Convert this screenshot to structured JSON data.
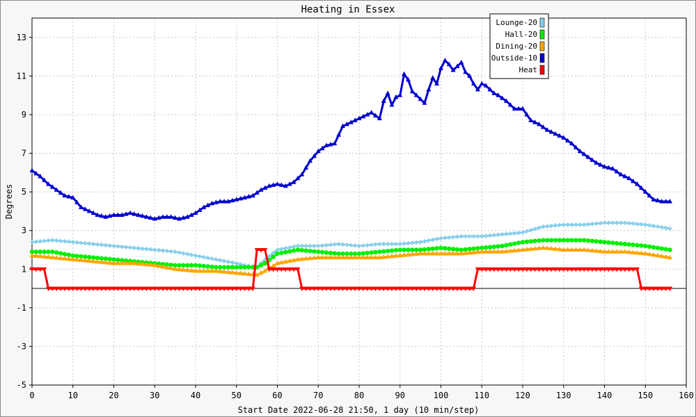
{
  "chart_data": {
    "type": "line",
    "title": "Heating in Essex",
    "xlabel": "Start Date 2022-06-28 21:50, 1 day (10 min/step)",
    "ylabel": "Degrees",
    "xlim": [
      0,
      160
    ],
    "ylim": [
      -5,
      14
    ],
    "x_ticks": [
      "0",
      "10",
      "20",
      "30",
      "40",
      "50",
      "60",
      "70",
      "80",
      "90",
      "100",
      "110",
      "120",
      "130",
      "140",
      "150",
      "160"
    ],
    "y_ticks": [
      "-5",
      "-3",
      "-1",
      "1",
      "3",
      "5",
      "7",
      "9",
      "11",
      "13"
    ],
    "grid": true,
    "legend_position": "top-right",
    "series": [
      {
        "name": "Lounge-20",
        "color": "#87ceeb",
        "marker": "plus",
        "points": [
          [
            0,
            2.4
          ],
          [
            5,
            2.5
          ],
          [
            10,
            2.4
          ],
          [
            15,
            2.3
          ],
          [
            20,
            2.2
          ],
          [
            25,
            2.1
          ],
          [
            30,
            2.0
          ],
          [
            35,
            1.9
          ],
          [
            40,
            1.7
          ],
          [
            45,
            1.5
          ],
          [
            50,
            1.3
          ],
          [
            52,
            1.2
          ],
          [
            55,
            1.1
          ],
          [
            57,
            1.5
          ],
          [
            60,
            2.0
          ],
          [
            65,
            2.2
          ],
          [
            70,
            2.2
          ],
          [
            75,
            2.3
          ],
          [
            80,
            2.2
          ],
          [
            85,
            2.3
          ],
          [
            90,
            2.3
          ],
          [
            95,
            2.4
          ],
          [
            100,
            2.6
          ],
          [
            105,
            2.7
          ],
          [
            110,
            2.7
          ],
          [
            115,
            2.8
          ],
          [
            120,
            2.9
          ],
          [
            125,
            3.2
          ],
          [
            130,
            3.3
          ],
          [
            135,
            3.3
          ],
          [
            140,
            3.4
          ],
          [
            145,
            3.4
          ],
          [
            150,
            3.3
          ],
          [
            156,
            3.1
          ]
        ]
      },
      {
        "name": "Hall-20",
        "color": "#00ee00",
        "marker": "circle",
        "points": [
          [
            0,
            1.9
          ],
          [
            5,
            1.9
          ],
          [
            10,
            1.7
          ],
          [
            15,
            1.6
          ],
          [
            20,
            1.5
          ],
          [
            25,
            1.4
          ],
          [
            30,
            1.3
          ],
          [
            35,
            1.2
          ],
          [
            40,
            1.2
          ],
          [
            45,
            1.1
          ],
          [
            50,
            1.1
          ],
          [
            55,
            1.1
          ],
          [
            57,
            1.3
          ],
          [
            60,
            1.8
          ],
          [
            65,
            2.0
          ],
          [
            70,
            1.9
          ],
          [
            75,
            1.8
          ],
          [
            80,
            1.8
          ],
          [
            85,
            1.9
          ],
          [
            90,
            2.0
          ],
          [
            95,
            2.0
          ],
          [
            100,
            2.1
          ],
          [
            105,
            2.0
          ],
          [
            110,
            2.1
          ],
          [
            115,
            2.2
          ],
          [
            120,
            2.4
          ],
          [
            125,
            2.5
          ],
          [
            130,
            2.5
          ],
          [
            135,
            2.5
          ],
          [
            140,
            2.4
          ],
          [
            145,
            2.3
          ],
          [
            150,
            2.2
          ],
          [
            156,
            2.0
          ]
        ]
      },
      {
        "name": "Dining-20",
        "color": "#ffa500",
        "marker": "triangle",
        "points": [
          [
            0,
            1.7
          ],
          [
            5,
            1.6
          ],
          [
            10,
            1.5
          ],
          [
            15,
            1.4
          ],
          [
            20,
            1.3
          ],
          [
            25,
            1.3
          ],
          [
            30,
            1.2
          ],
          [
            35,
            1.0
          ],
          [
            40,
            0.9
          ],
          [
            45,
            0.9
          ],
          [
            50,
            0.8
          ],
          [
            55,
            0.7
          ],
          [
            57,
            0.9
          ],
          [
            60,
            1.3
          ],
          [
            65,
            1.5
          ],
          [
            70,
            1.6
          ],
          [
            75,
            1.6
          ],
          [
            80,
            1.6
          ],
          [
            85,
            1.6
          ],
          [
            90,
            1.7
          ],
          [
            95,
            1.8
          ],
          [
            100,
            1.8
          ],
          [
            105,
            1.8
          ],
          [
            110,
            1.9
          ],
          [
            115,
            1.9
          ],
          [
            120,
            2.0
          ],
          [
            125,
            2.1
          ],
          [
            130,
            2.0
          ],
          [
            135,
            2.0
          ],
          [
            140,
            1.9
          ],
          [
            145,
            1.9
          ],
          [
            150,
            1.8
          ],
          [
            156,
            1.6
          ]
        ]
      },
      {
        "name": "Outside-10",
        "color": "#0000cc",
        "marker": "triangle",
        "points": [
          [
            0,
            6.1
          ],
          [
            2,
            5.8
          ],
          [
            4,
            5.4
          ],
          [
            6,
            5.1
          ],
          [
            8,
            4.8
          ],
          [
            10,
            4.7
          ],
          [
            12,
            4.2
          ],
          [
            14,
            4.0
          ],
          [
            16,
            3.8
          ],
          [
            18,
            3.7
          ],
          [
            20,
            3.8
          ],
          [
            22,
            3.8
          ],
          [
            24,
            3.9
          ],
          [
            26,
            3.8
          ],
          [
            28,
            3.7
          ],
          [
            30,
            3.6
          ],
          [
            32,
            3.7
          ],
          [
            34,
            3.7
          ],
          [
            36,
            3.6
          ],
          [
            38,
            3.7
          ],
          [
            40,
            3.9
          ],
          [
            42,
            4.2
          ],
          [
            44,
            4.4
          ],
          [
            46,
            4.5
          ],
          [
            48,
            4.5
          ],
          [
            50,
            4.6
          ],
          [
            52,
            4.7
          ],
          [
            54,
            4.8
          ],
          [
            56,
            5.1
          ],
          [
            58,
            5.3
          ],
          [
            60,
            5.4
          ],
          [
            62,
            5.3
          ],
          [
            64,
            5.5
          ],
          [
            66,
            5.9
          ],
          [
            68,
            6.6
          ],
          [
            70,
            7.1
          ],
          [
            72,
            7.4
          ],
          [
            74,
            7.5
          ],
          [
            76,
            8.4
          ],
          [
            78,
            8.6
          ],
          [
            80,
            8.8
          ],
          [
            82,
            9.0
          ],
          [
            83,
            9.1
          ],
          [
            85,
            8.8
          ],
          [
            86,
            9.7
          ],
          [
            87,
            10.1
          ],
          [
            88,
            9.5
          ],
          [
            89,
            9.9
          ],
          [
            90,
            10.0
          ],
          [
            91,
            11.1
          ],
          [
            92,
            10.8
          ],
          [
            93,
            10.2
          ],
          [
            94,
            10.0
          ],
          [
            95,
            9.8
          ],
          [
            96,
            9.6
          ],
          [
            97,
            10.3
          ],
          [
            98,
            10.9
          ],
          [
            99,
            10.6
          ],
          [
            100,
            11.4
          ],
          [
            101,
            11.8
          ],
          [
            102,
            11.6
          ],
          [
            103,
            11.3
          ],
          [
            104,
            11.5
          ],
          [
            105,
            11.7
          ],
          [
            106,
            11.2
          ],
          [
            107,
            11.0
          ],
          [
            108,
            10.6
          ],
          [
            109,
            10.3
          ],
          [
            110,
            10.6
          ],
          [
            111,
            10.5
          ],
          [
            112,
            10.3
          ],
          [
            113,
            10.1
          ],
          [
            114,
            10.0
          ],
          [
            116,
            9.7
          ],
          [
            118,
            9.3
          ],
          [
            120,
            9.3
          ],
          [
            122,
            8.7
          ],
          [
            124,
            8.5
          ],
          [
            126,
            8.2
          ],
          [
            128,
            8.0
          ],
          [
            130,
            7.8
          ],
          [
            132,
            7.5
          ],
          [
            134,
            7.1
          ],
          [
            136,
            6.8
          ],
          [
            138,
            6.5
          ],
          [
            140,
            6.3
          ],
          [
            142,
            6.2
          ],
          [
            144,
            5.9
          ],
          [
            146,
            5.7
          ],
          [
            148,
            5.4
          ],
          [
            150,
            5.0
          ],
          [
            152,
            4.6
          ],
          [
            154,
            4.5
          ],
          [
            156,
            4.5
          ]
        ]
      },
      {
        "name": "Heat",
        "color": "#ff0000",
        "marker": "triangle-down",
        "points": [
          [
            0,
            1
          ],
          [
            3,
            1
          ],
          [
            4,
            0
          ],
          [
            54,
            0
          ],
          [
            55,
            2
          ],
          [
            57,
            2
          ],
          [
            58,
            1
          ],
          [
            65,
            1
          ],
          [
            66,
            0
          ],
          [
            108,
            0
          ],
          [
            109,
            1
          ],
          [
            148,
            1
          ],
          [
            149,
            0
          ],
          [
            156,
            0
          ]
        ]
      }
    ]
  }
}
